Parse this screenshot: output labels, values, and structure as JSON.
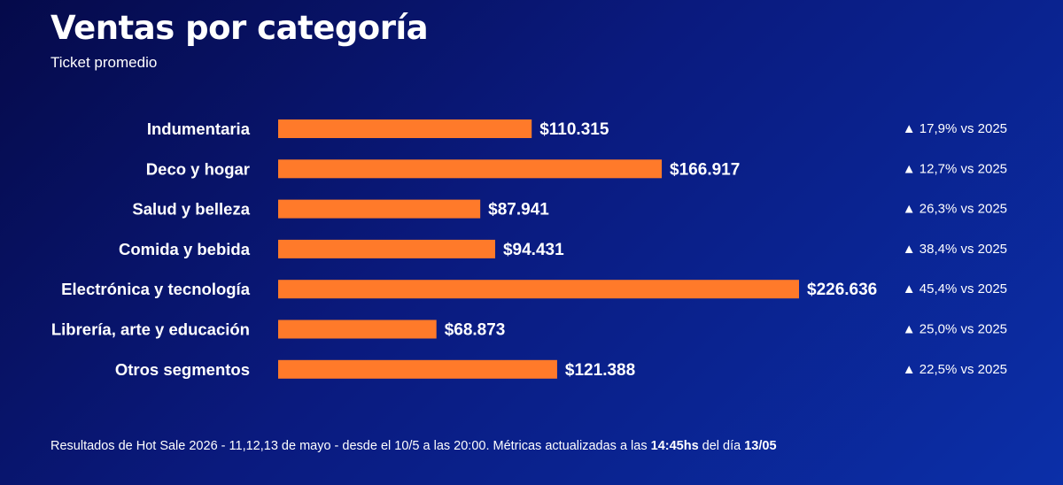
{
  "header": {
    "title": "Ventas por categoría",
    "subtitle": "Ticket promedio"
  },
  "chart_data": {
    "type": "bar",
    "orientation": "horizontal",
    "categories": [
      "Indumentaria",
      "Deco y hogar",
      "Salud y belleza",
      "Comida y bebida",
      "Electrónica y tecnología",
      "Librería, arte y educación",
      "Otros segmentos"
    ],
    "values": [
      110315,
      166917,
      87941,
      94431,
      226636,
      68873,
      121388
    ],
    "value_labels": [
      "$110.315",
      "$166.917",
      "$87.941",
      "$94.431",
      "$226.636",
      "$68.873",
      "$121.388"
    ],
    "changes": [
      "▲ 17,9% vs 2025",
      "▲ 12,7% vs 2025",
      "▲ 26,3% vs 2025",
      "▲ 38,4% vs 2025",
      "▲ 45,4% vs 2025",
      "▲ 25,0% vs 2025",
      "▲ 22,5% vs 2025"
    ],
    "bar_color": "#ff7a2a",
    "grid": false,
    "legend": "none"
  },
  "footer": {
    "text_1": "Resultados de Hot Sale 2026 - 11,12,13 de mayo - desde el 10/5 a las 20:00. Métricas actualizadas a las ",
    "time": "14:45hs",
    "text_2": " del día ",
    "date": "13/05"
  }
}
